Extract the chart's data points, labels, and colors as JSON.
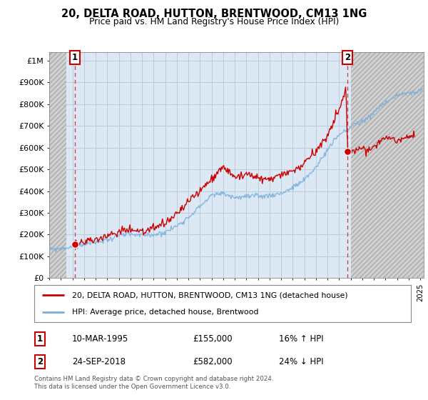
{
  "title": "20, DELTA ROAD, HUTTON, BRENTWOOD, CM13 1NG",
  "subtitle": "Price paid vs. HM Land Registry's House Price Index (HPI)",
  "ylabel_ticks": [
    "£0",
    "£100K",
    "£200K",
    "£300K",
    "£400K",
    "£500K",
    "£600K",
    "£700K",
    "£800K",
    "£900K",
    "£1M"
  ],
  "ytick_values": [
    0,
    100000,
    200000,
    300000,
    400000,
    500000,
    600000,
    700000,
    800000,
    900000,
    1000000
  ],
  "ylim": [
    0,
    1040000
  ],
  "xlim_start": 1993.0,
  "xlim_end": 2025.3,
  "hatch_left_end": 1994.5,
  "hatch_right_start": 2019.0,
  "transaction1_x": 1995.19,
  "transaction1_y": 155000,
  "transaction2_x": 2018.73,
  "transaction2_y": 582000,
  "legend_line1": "20, DELTA ROAD, HUTTON, BRENTWOOD, CM13 1NG (detached house)",
  "legend_line2": "HPI: Average price, detached house, Brentwood",
  "table_row1_num": "1",
  "table_row1_date": "10-MAR-1995",
  "table_row1_price": "£155,000",
  "table_row1_hpi": "16% ↑ HPI",
  "table_row2_num": "2",
  "table_row2_date": "24-SEP-2018",
  "table_row2_price": "£582,000",
  "table_row2_hpi": "24% ↓ HPI",
  "footer": "Contains HM Land Registry data © Crown copyright and database right 2024.\nThis data is licensed under the Open Government Licence v3.0.",
  "red_color": "#cc0000",
  "blue_color": "#7aaddc",
  "hatch_color": "#bbbbbb",
  "grid_color": "#bbccdd",
  "plot_bg_color": "#dce9f5",
  "hatch_bg_color": "#d0d0d0",
  "marker_box_color": "#cc0000",
  "fig_bg": "#ffffff"
}
